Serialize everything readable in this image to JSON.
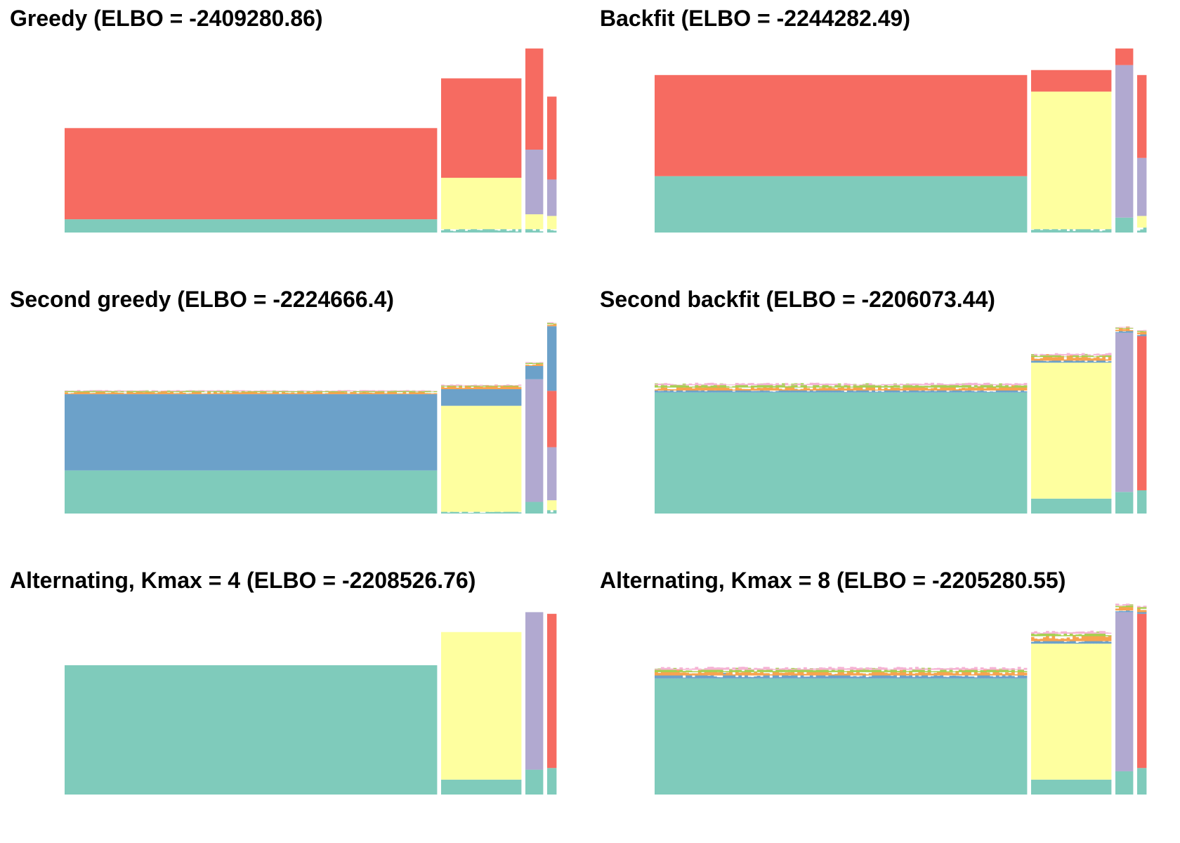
{
  "colors": {
    "teal": "#7fcbbb",
    "red": "#f66b61",
    "yellow": "#feff9f",
    "purple": "#b1a9d0",
    "blue": "#6ca1c9",
    "orange": "#f7a34f",
    "green": "#a5d14f",
    "pink": "#f5b3d4"
  },
  "chart_data": [
    {
      "type": "bar",
      "stacked": true,
      "title": "Greedy (ELBO = -2409280.86)",
      "xlabel": "",
      "ylabel": "",
      "axes": "none",
      "ylim": [
        0,
        1.1
      ],
      "groups": [
        {
          "bars": 180,
          "segments": [
            [
              "teal",
              0.08
            ],
            [
              "red",
              0.55
            ]
          ]
        },
        {
          "bars": 40,
          "segments": [
            [
              "teal",
              0.02
            ],
            [
              "yellow",
              0.31
            ],
            [
              "red",
              0.6
            ]
          ]
        },
        {
          "bars": 8,
          "segments": [
            [
              "teal",
              0.02
            ],
            [
              "yellow",
              0.09
            ],
            [
              "purple",
              0.39
            ],
            [
              "red",
              0.61
            ]
          ]
        },
        {
          "bars": 5,
          "segments": [
            [
              "teal",
              0.02
            ],
            [
              "yellow",
              0.08
            ],
            [
              "purple",
              0.22
            ],
            [
              "red",
              0.5
            ]
          ]
        }
      ]
    },
    {
      "type": "bar",
      "stacked": true,
      "title": "Backfit (ELBO = -2244282.49)",
      "xlabel": "",
      "ylabel": "",
      "axes": "none",
      "ylim": [
        0,
        1.1
      ],
      "groups": [
        {
          "bars": 180,
          "segments": [
            [
              "teal",
              0.34
            ],
            [
              "red",
              0.61
            ]
          ]
        },
        {
          "bars": 40,
          "segments": [
            [
              "teal",
              0.02
            ],
            [
              "yellow",
              0.83
            ],
            [
              "red",
              0.13
            ]
          ]
        },
        {
          "bars": 8,
          "segments": [
            [
              "teal",
              0.09
            ],
            [
              "purple",
              0.92
            ],
            [
              "red",
              0.1
            ]
          ]
        },
        {
          "bars": 5,
          "segments": [
            [
              "teal",
              0.03
            ],
            [
              "yellow",
              0.07
            ],
            [
              "purple",
              0.35
            ],
            [
              "red",
              0.5
            ]
          ]
        }
      ]
    },
    {
      "type": "bar",
      "stacked": true,
      "title": "Second greedy (ELBO = -2224666.4)",
      "xlabel": "",
      "ylabel": "",
      "axes": "none",
      "ylim": [
        0,
        1.1
      ],
      "groups": [
        {
          "bars": 180,
          "segments": [
            [
              "teal",
              0.26
            ],
            [
              "blue",
              0.46
            ],
            [
              "orange",
              0.012
            ],
            [
              "green",
              0.006
            ],
            [
              "pink",
              0.004
            ]
          ]
        },
        {
          "bars": 40,
          "segments": [
            [
              "teal",
              0.01
            ],
            [
              "yellow",
              0.64
            ],
            [
              "blue",
              0.1
            ],
            [
              "orange",
              0.015
            ],
            [
              "green",
              0.006
            ],
            [
              "pink",
              0.004
            ]
          ]
        },
        {
          "bars": 8,
          "segments": [
            [
              "teal",
              0.07
            ],
            [
              "purple",
              0.74
            ],
            [
              "blue",
              0.08
            ],
            [
              "orange",
              0.012
            ],
            [
              "green",
              0.006
            ],
            [
              "pink",
              0.004
            ]
          ]
        },
        {
          "bars": 5,
          "segments": [
            [
              "teal",
              0.02
            ],
            [
              "yellow",
              0.06
            ],
            [
              "purple",
              0.32
            ],
            [
              "red",
              0.34
            ],
            [
              "blue",
              0.39
            ],
            [
              "orange",
              0.012
            ],
            [
              "green",
              0.006
            ],
            [
              "pink",
              0.004
            ]
          ]
        }
      ]
    },
    {
      "type": "bar",
      "stacked": true,
      "title": "Second backfit (ELBO = -2206073.44)",
      "xlabel": "",
      "ylabel": "",
      "axes": "none",
      "ylim": [
        0,
        1.1
      ],
      "groups": [
        {
          "bars": 180,
          "segments": [
            [
              "teal",
              0.73
            ],
            [
              "blue",
              0.012
            ],
            [
              "orange",
              0.018
            ],
            [
              "green",
              0.014
            ],
            [
              "pink",
              0.008
            ]
          ]
        },
        {
          "bars": 40,
          "segments": [
            [
              "teal",
              0.09
            ],
            [
              "yellow",
              0.82
            ],
            [
              "blue",
              0.012
            ],
            [
              "orange",
              0.022
            ],
            [
              "green",
              0.01
            ],
            [
              "pink",
              0.008
            ]
          ]
        },
        {
          "bars": 8,
          "segments": [
            [
              "teal",
              0.13
            ],
            [
              "purple",
              0.96
            ],
            [
              "blue",
              0.01
            ],
            [
              "orange",
              0.015
            ],
            [
              "green",
              0.006
            ],
            [
              "pink",
              0.004
            ]
          ]
        },
        {
          "bars": 5,
          "segments": [
            [
              "teal",
              0.14
            ],
            [
              "red",
              0.93
            ],
            [
              "blue",
              0.01
            ],
            [
              "orange",
              0.015
            ],
            [
              "green",
              0.006
            ],
            [
              "pink",
              0.004
            ]
          ]
        }
      ]
    },
    {
      "type": "bar",
      "stacked": true,
      "title": "Alternating, Kmax = 4 (ELBO = -2208526.76)",
      "xlabel": "",
      "ylabel": "",
      "axes": "none",
      "ylim": [
        0,
        1.1
      ],
      "groups": [
        {
          "bars": 180,
          "segments": [
            [
              "teal",
              0.78
            ]
          ]
        },
        {
          "bars": 40,
          "segments": [
            [
              "teal",
              0.09
            ],
            [
              "yellow",
              0.89
            ]
          ]
        },
        {
          "bars": 8,
          "segments": [
            [
              "teal",
              0.15
            ],
            [
              "purple",
              0.95
            ]
          ]
        },
        {
          "bars": 5,
          "segments": [
            [
              "teal",
              0.16
            ],
            [
              "red",
              0.93
            ]
          ]
        }
      ]
    },
    {
      "type": "bar",
      "stacked": true,
      "title": "Alternating, Kmax = 8 (ELBO = -2205280.55)",
      "xlabel": "",
      "ylabel": "",
      "axes": "none",
      "ylim": [
        0,
        1.1
      ],
      "groups": [
        {
          "bars": 180,
          "segments": [
            [
              "teal",
              0.7
            ],
            [
              "blue",
              0.018
            ],
            [
              "orange",
              0.02
            ],
            [
              "green",
              0.014
            ],
            [
              "pink",
              0.01
            ]
          ]
        },
        {
          "bars": 40,
          "segments": [
            [
              "teal",
              0.09
            ],
            [
              "yellow",
              0.82
            ],
            [
              "blue",
              0.015
            ],
            [
              "orange",
              0.03
            ],
            [
              "green",
              0.015
            ],
            [
              "pink",
              0.01
            ]
          ]
        },
        {
          "bars": 8,
          "segments": [
            [
              "teal",
              0.14
            ],
            [
              "purple",
              0.96
            ],
            [
              "blue",
              0.01
            ],
            [
              "orange",
              0.02
            ],
            [
              "green",
              0.01
            ],
            [
              "pink",
              0.006
            ]
          ]
        },
        {
          "bars": 5,
          "segments": [
            [
              "teal",
              0.16
            ],
            [
              "red",
              0.93
            ],
            [
              "blue",
              0.01
            ],
            [
              "orange",
              0.02
            ],
            [
              "green",
              0.01
            ],
            [
              "pink",
              0.006
            ]
          ]
        }
      ]
    }
  ]
}
